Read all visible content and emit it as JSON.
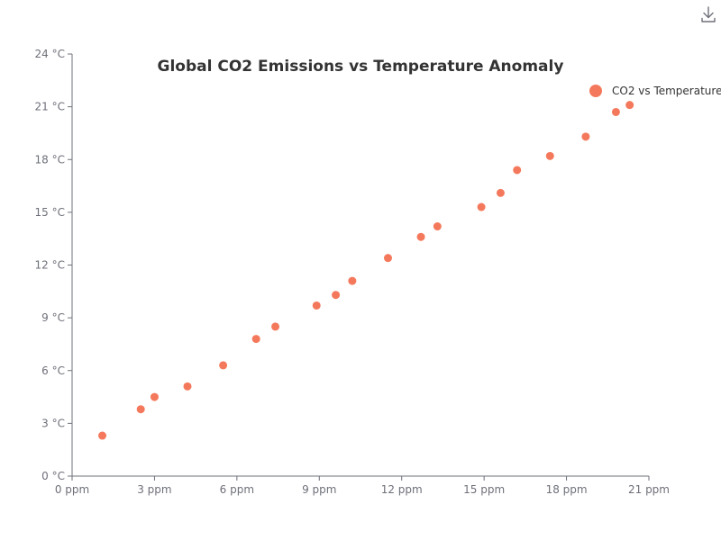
{
  "toolbar": {
    "download_icon": "download-icon"
  },
  "chart_data": {
    "type": "scatter",
    "title": "Global CO2 Emissions vs Temperature Anomaly",
    "xlabel": "",
    "ylabel": "",
    "xlim": [
      0,
      21
    ],
    "ylim": [
      0,
      24
    ],
    "x_ticks": [
      {
        "value": 0,
        "label": "0 ppm"
      },
      {
        "value": 3,
        "label": "3 ppm"
      },
      {
        "value": 6,
        "label": "6 ppm"
      },
      {
        "value": 9,
        "label": "9 ppm"
      },
      {
        "value": 12,
        "label": "12 ppm"
      },
      {
        "value": 15,
        "label": "15 ppm"
      },
      {
        "value": 18,
        "label": "18 ppm"
      },
      {
        "value": 21,
        "label": "21 ppm"
      }
    ],
    "y_ticks": [
      {
        "value": 0,
        "label": "0 °C"
      },
      {
        "value": 3,
        "label": "3 °C"
      },
      {
        "value": 6,
        "label": "6 °C"
      },
      {
        "value": 9,
        "label": "9 °C"
      },
      {
        "value": 12,
        "label": "12 °C"
      },
      {
        "value": 15,
        "label": "15 °C"
      },
      {
        "value": 18,
        "label": "18 °C"
      },
      {
        "value": 21,
        "label": "21 °C"
      },
      {
        "value": 24,
        "label": "24 °C"
      }
    ],
    "grid": false,
    "legend_position": "top-right",
    "series": [
      {
        "name": "CO2 vs Temperature",
        "color": "#f4795c",
        "points": [
          {
            "x": 1.1,
            "y": 2.3
          },
          {
            "x": 2.5,
            "y": 3.8
          },
          {
            "x": 3.0,
            "y": 4.5
          },
          {
            "x": 4.2,
            "y": 5.1
          },
          {
            "x": 5.5,
            "y": 6.3
          },
          {
            "x": 6.7,
            "y": 7.8
          },
          {
            "x": 7.4,
            "y": 8.5
          },
          {
            "x": 8.9,
            "y": 9.7
          },
          {
            "x": 9.6,
            "y": 10.3
          },
          {
            "x": 10.2,
            "y": 11.1
          },
          {
            "x": 11.5,
            "y": 12.4
          },
          {
            "x": 12.7,
            "y": 13.6
          },
          {
            "x": 13.3,
            "y": 14.2
          },
          {
            "x": 14.9,
            "y": 15.3
          },
          {
            "x": 15.6,
            "y": 16.1
          },
          {
            "x": 16.2,
            "y": 17.4
          },
          {
            "x": 17.4,
            "y": 18.2
          },
          {
            "x": 18.7,
            "y": 19.3
          },
          {
            "x": 19.8,
            "y": 20.7
          },
          {
            "x": 20.3,
            "y": 21.1
          }
        ]
      }
    ]
  }
}
